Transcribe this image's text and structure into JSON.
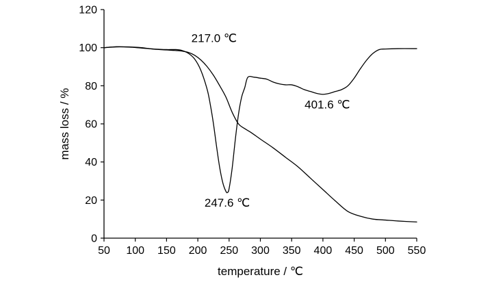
{
  "chart_data": {
    "type": "line",
    "title": "",
    "xlabel": "temperature / ℃",
    "ylabel": "mass loss / %",
    "xlim": [
      50,
      550
    ],
    "ylim": [
      0,
      120
    ],
    "xticks": [
      50,
      100,
      150,
      200,
      250,
      300,
      350,
      400,
      450,
      500,
      550
    ],
    "yticks": [
      0,
      20,
      40,
      60,
      80,
      100,
      120
    ],
    "grid": false,
    "legend": "none",
    "series": [
      {
        "x": [
          50,
          70,
          90,
          110,
          130,
          150,
          165,
          175,
          185,
          195,
          205,
          215,
          225,
          235,
          245,
          255,
          265,
          275,
          285,
          300,
          320,
          340,
          360,
          380,
          400,
          420,
          440,
          460,
          480,
          500,
          520,
          550
        ],
        "y": [
          100,
          100.5,
          100.4,
          100,
          99.2,
          98.8,
          98.5,
          98.2,
          97.5,
          96,
          93.5,
          90,
          85.5,
          80,
          74,
          66,
          60,
          57.5,
          55.5,
          52,
          47.5,
          42.5,
          37.5,
          31.5,
          25.5,
          19.5,
          14,
          11.5,
          10,
          9.5,
          9,
          8.5
        ]
      },
      {
        "x": [
          50,
          70,
          90,
          110,
          130,
          150,
          165,
          175,
          185,
          195,
          205,
          215,
          220,
          225,
          230,
          235,
          240,
          245,
          247.6,
          250,
          255,
          260,
          265,
          270,
          275,
          280,
          290,
          300,
          310,
          320,
          330,
          340,
          350,
          360,
          370,
          380,
          390,
          400,
          410,
          420,
          430,
          440,
          450,
          460,
          470,
          480,
          490,
          500,
          520,
          550
        ],
        "y": [
          100,
          100.4,
          100.3,
          99.8,
          99.3,
          99,
          99,
          98.5,
          97,
          94,
          88,
          78,
          70,
          60,
          48,
          37,
          29,
          24.5,
          24,
          26,
          37,
          52,
          65,
          74,
          79,
          84.5,
          84.5,
          84,
          83.5,
          82,
          81,
          80.5,
          80.5,
          79.5,
          78,
          77,
          76,
          75.5,
          76,
          77,
          78,
          80,
          84,
          89,
          93.5,
          97,
          99,
          99.3,
          99.5,
          99.5
        ]
      }
    ],
    "annotations": [
      {
        "text": "217.0 ℃",
        "x": 226,
        "y": 103
      },
      {
        "text": "247.6 ℃",
        "x": 247,
        "y": 16.5
      },
      {
        "text": "401.6 ℃",
        "x": 407,
        "y": 68
      }
    ]
  }
}
